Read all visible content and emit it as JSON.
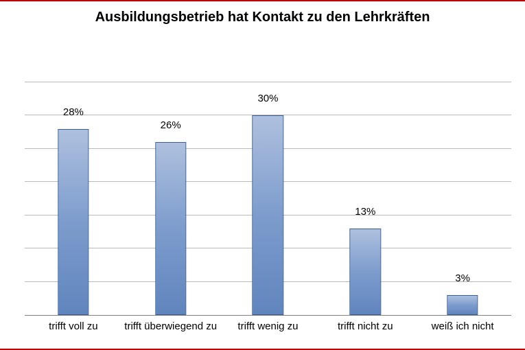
{
  "chart": {
    "type": "bar",
    "title": "Ausbildungsbetrieb hat Kontakt zu den Lehrkräften",
    "title_fontsize": 20,
    "title_fontweight": "bold",
    "categories": [
      "trifft voll zu",
      "trifft überwiegend zu",
      "trifft wenig zu",
      "trifft nicht zu",
      "weiß ich nicht"
    ],
    "values": [
      28,
      26,
      30,
      13,
      3
    ],
    "value_labels": [
      "28%",
      "26%",
      "30%",
      "13%",
      "3%"
    ],
    "ylim": [
      0,
      35
    ],
    "ytick_step": 5,
    "frame_border_color": "#c00000",
    "background_color": "#ffffff",
    "grid_color": "#b9b9b9",
    "axis_color": "#808080",
    "bar_gradient_top": "#aec0de",
    "bar_gradient_mid": "#7d9ccd",
    "bar_gradient_bot": "#6085bd",
    "bar_border_color": "#3a5e95",
    "bar_width_pct": 32,
    "label_fontsize": 15,
    "value_label_fontsize": 15,
    "value_label_gap": 16
  }
}
